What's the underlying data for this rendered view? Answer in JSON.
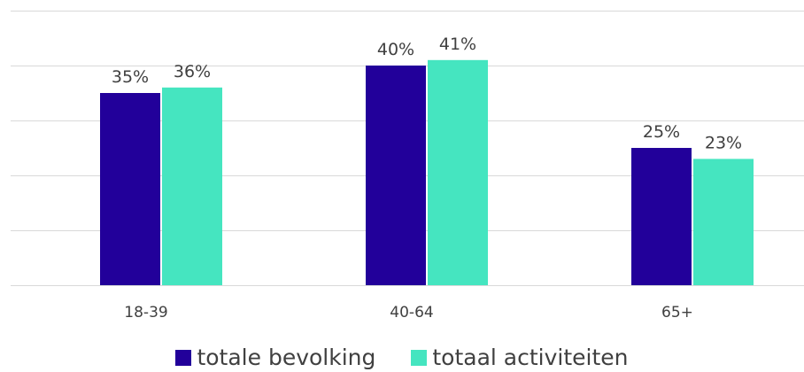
{
  "chart_data": {
    "type": "bar",
    "categories": [
      "18-39",
      "40-64",
      "65+"
    ],
    "series": [
      {
        "name": "totale bevolking",
        "values": [
          35,
          40,
          25
        ],
        "labels": [
          "35%",
          "40%",
          "25%"
        ],
        "color": "#22009a"
      },
      {
        "name": "totaal activiteiten",
        "values": [
          36,
          41,
          23
        ],
        "labels": [
          "36%",
          "41%",
          "23%"
        ],
        "color": "#45e5c0"
      }
    ],
    "title": "",
    "xlabel": "",
    "ylabel": "",
    "ylim": [
      0,
      50
    ],
    "yticks": [
      0,
      10,
      20,
      30,
      40,
      50
    ],
    "ytick_labels_visible": false,
    "grid": true,
    "gridline_color": "#d9d9d9",
    "legend_position": "bottom"
  }
}
